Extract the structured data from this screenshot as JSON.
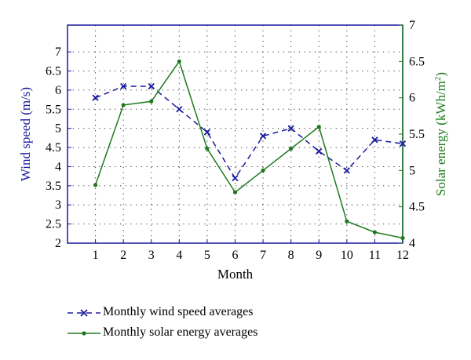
{
  "chart_data": {
    "type": "line",
    "xlabel": "Month",
    "x": [
      1,
      2,
      3,
      4,
      5,
      6,
      7,
      8,
      9,
      10,
      11,
      12
    ],
    "xticks": [
      "1",
      "2",
      "3",
      "4",
      "5",
      "6",
      "7",
      "8",
      "9",
      "10",
      "11",
      "12"
    ],
    "xlim": [
      0,
      12
    ],
    "y_left": {
      "label": "Wind speed (m/s)",
      "lim": [
        2,
        7.7
      ],
      "ticks": [
        "2",
        "2.5",
        "3",
        "3.5",
        "4",
        "4.5",
        "5",
        "5.5",
        "6",
        "6.5",
        "7"
      ],
      "color": "#1a1a9e"
    },
    "y_right": {
      "label_prefix": "Solar energy (kWh/m",
      "label_sup": "2",
      "label_suffix": ")",
      "lim": [
        4,
        7
      ],
      "ticks": [
        "4",
        "4.5",
        "5",
        "5.5",
        "6",
        "6.5",
        "7"
      ],
      "color": "#1e7a1e"
    },
    "grid": true,
    "series": [
      {
        "name": "Monthly wind speed averages",
        "axis": "left",
        "color": "#1a1a9e",
        "style": "dashed",
        "marker": "x",
        "values": [
          5.8,
          6.1,
          6.1,
          5.5,
          4.9,
          3.7,
          4.8,
          5.0,
          4.4,
          3.9,
          4.7,
          4.6
        ]
      },
      {
        "name": "Monthly solar energy averages",
        "axis": "right",
        "color": "#1e7a1e",
        "style": "solid",
        "marker": "dot",
        "values": [
          4.8,
          5.9,
          5.95,
          6.5,
          5.3,
          4.7,
          5.0,
          5.3,
          5.6,
          4.3,
          4.15,
          4.07
        ]
      }
    ],
    "legend": "bottom-left"
  }
}
